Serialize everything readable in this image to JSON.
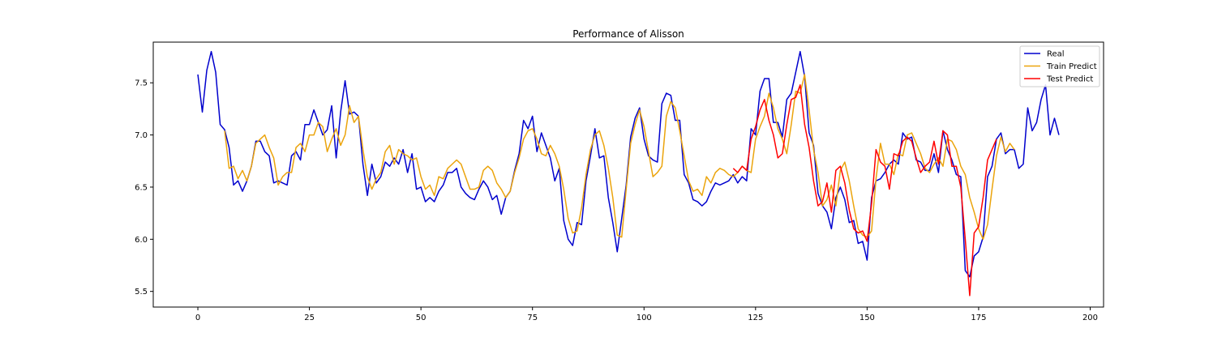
{
  "chart_data": {
    "type": "line",
    "title": "Performance of Alisson",
    "xlabel": "",
    "ylabel": "",
    "xlim": [
      -10,
      203
    ],
    "ylim": [
      5.35,
      7.89
    ],
    "xticks": [
      0,
      25,
      50,
      75,
      100,
      125,
      150,
      175,
      200
    ],
    "yticks": [
      5.5,
      6.0,
      6.5,
      7.0,
      7.5
    ],
    "xtick_labels": [
      "0",
      "25",
      "50",
      "75",
      "100",
      "125",
      "150",
      "175",
      "200"
    ],
    "ytick_labels": [
      "5.5",
      "6.0",
      "6.5",
      "7.0",
      "7.5"
    ],
    "grid": false,
    "legend_position": "top-right",
    "series": [
      {
        "name": "Real",
        "color": "#0000cd",
        "x_start": 0,
        "values": [
          7.58,
          7.22,
          7.62,
          7.8,
          7.6,
          7.1,
          7.05,
          6.88,
          6.52,
          6.56,
          6.46,
          6.56,
          6.7,
          6.94,
          6.94,
          6.84,
          6.8,
          6.54,
          6.56,
          6.54,
          6.52,
          6.8,
          6.84,
          6.76,
          7.1,
          7.1,
          7.24,
          7.12,
          7.0,
          7.05,
          7.28,
          6.78,
          7.22,
          7.52,
          7.2,
          7.22,
          7.18,
          6.72,
          6.42,
          6.72,
          6.54,
          6.6,
          6.74,
          6.7,
          6.78,
          6.72,
          6.86,
          6.64,
          6.82,
          6.48,
          6.5,
          6.36,
          6.4,
          6.36,
          6.46,
          6.52,
          6.64,
          6.64,
          6.68,
          6.5,
          6.44,
          6.4,
          6.38,
          6.48,
          6.56,
          6.5,
          6.38,
          6.42,
          6.24,
          6.4,
          6.46,
          6.66,
          6.82,
          7.14,
          7.06,
          7.18,
          6.84,
          7.02,
          6.9,
          6.78,
          6.56,
          6.68,
          6.18,
          6.0,
          5.94,
          6.16,
          6.14,
          6.56,
          6.8,
          7.06,
          6.78,
          6.8,
          6.4,
          6.16,
          5.88,
          6.2,
          6.52,
          6.98,
          7.16,
          7.26,
          6.96,
          6.8,
          6.76,
          6.74,
          7.3,
          7.4,
          7.38,
          7.14,
          7.14,
          6.62,
          6.54,
          6.38,
          6.36,
          6.32,
          6.36,
          6.46,
          6.54,
          6.52,
          6.54,
          6.56,
          6.62,
          6.54,
          6.6,
          6.56,
          7.06,
          7.0,
          7.42,
          7.54,
          7.54,
          7.12,
          7.12,
          6.98,
          7.34,
          7.4,
          7.6,
          7.8,
          7.56,
          7.02,
          6.9,
          6.44,
          6.32,
          6.26,
          6.1,
          6.4,
          6.5,
          6.38,
          6.16,
          6.18,
          5.96,
          5.98,
          5.8,
          6.4,
          6.56,
          6.58,
          6.64,
          6.72,
          6.76,
          6.72,
          7.02,
          6.96,
          6.98,
          6.76,
          6.74,
          6.66,
          6.66,
          6.82,
          6.64,
          7.04,
          6.86,
          6.76,
          6.62,
          6.6,
          5.7,
          5.64,
          5.84,
          5.88,
          6.02,
          6.6,
          6.7,
          6.96,
          7.02,
          6.82,
          6.86,
          6.86,
          6.68,
          6.72,
          7.26,
          7.04,
          7.12,
          7.34,
          7.48,
          7.0,
          7.16,
          7.0
        ]
      },
      {
        "name": "Train Predict",
        "color": "#eba40c",
        "x_start": 6,
        "values": [
          7.04,
          6.68,
          6.7,
          6.58,
          6.66,
          6.56,
          6.7,
          6.92,
          6.96,
          7.0,
          6.88,
          6.78,
          6.52,
          6.6,
          6.64,
          6.64,
          6.88,
          6.92,
          6.84,
          7.0,
          7.0,
          7.12,
          7.08,
          6.84,
          6.96,
          7.06,
          6.9,
          7.0,
          7.28,
          7.12,
          7.18,
          6.86,
          6.6,
          6.48,
          6.58,
          6.64,
          6.84,
          6.9,
          6.72,
          6.86,
          6.82,
          6.8,
          6.76,
          6.78,
          6.6,
          6.48,
          6.52,
          6.42,
          6.6,
          6.58,
          6.68,
          6.72,
          6.76,
          6.72,
          6.6,
          6.48,
          6.48,
          6.5,
          6.66,
          6.7,
          6.66,
          6.54,
          6.48,
          6.4,
          6.46,
          6.64,
          6.78,
          6.96,
          7.04,
          7.06,
          6.96,
          6.82,
          6.8,
          6.9,
          6.82,
          6.7,
          6.48,
          6.2,
          6.06,
          6.08,
          6.3,
          6.62,
          6.86,
          7.0,
          7.04,
          6.9,
          6.68,
          6.4,
          6.04,
          6.02,
          6.48,
          6.92,
          7.1,
          7.24,
          7.08,
          6.84,
          6.6,
          6.64,
          6.7,
          7.18,
          7.32,
          7.26,
          7.04,
          6.8,
          6.56,
          6.46,
          6.48,
          6.42,
          6.6,
          6.54,
          6.64,
          6.68,
          6.66,
          6.62,
          6.6,
          6.64,
          6.7,
          6.66,
          6.64,
          6.96,
          7.08,
          7.18,
          7.4,
          7.26,
          7.06,
          6.96,
          6.82,
          7.1,
          7.42,
          7.4,
          7.58,
          7.24,
          6.86,
          6.64,
          6.32,
          6.38,
          6.52,
          6.32,
          6.66,
          6.74,
          6.56,
          6.32,
          6.1,
          6.04,
          6.02,
          6.08,
          6.58,
          6.92,
          6.72,
          6.72,
          6.62,
          6.82,
          6.8,
          7.0,
          7.02,
          6.92,
          6.82,
          6.68,
          6.64,
          6.72,
          6.78,
          6.7,
          6.96,
          6.94,
          6.86,
          6.7,
          6.62,
          6.4,
          6.26,
          6.1,
          6.0,
          6.14,
          6.48,
          6.8,
          6.98,
          6.84,
          6.92,
          6.86
        ]
      },
      {
        "name": "Test Predict",
        "color": "#ff0000",
        "x_start": 120,
        "values": [
          6.68,
          6.64,
          6.7,
          6.66,
          6.96,
          7.08,
          7.24,
          7.34,
          7.14,
          7.0,
          6.78,
          6.82,
          7.1,
          7.34,
          7.36,
          7.48,
          7.1,
          6.88,
          6.56,
          6.32,
          6.36,
          6.54,
          6.26,
          6.66,
          6.7,
          6.54,
          6.28,
          6.1,
          6.06,
          6.08,
          5.98,
          6.34,
          6.86,
          6.74,
          6.7,
          6.48,
          6.82,
          6.8,
          6.94,
          6.98,
          6.94,
          6.78,
          6.64,
          6.7,
          6.74,
          6.94,
          6.72,
          7.04,
          7.0,
          6.7,
          6.7,
          6.5,
          6.0,
          5.46,
          6.06,
          6.12,
          6.4,
          6.76,
          6.86,
          6.96
        ]
      }
    ]
  }
}
